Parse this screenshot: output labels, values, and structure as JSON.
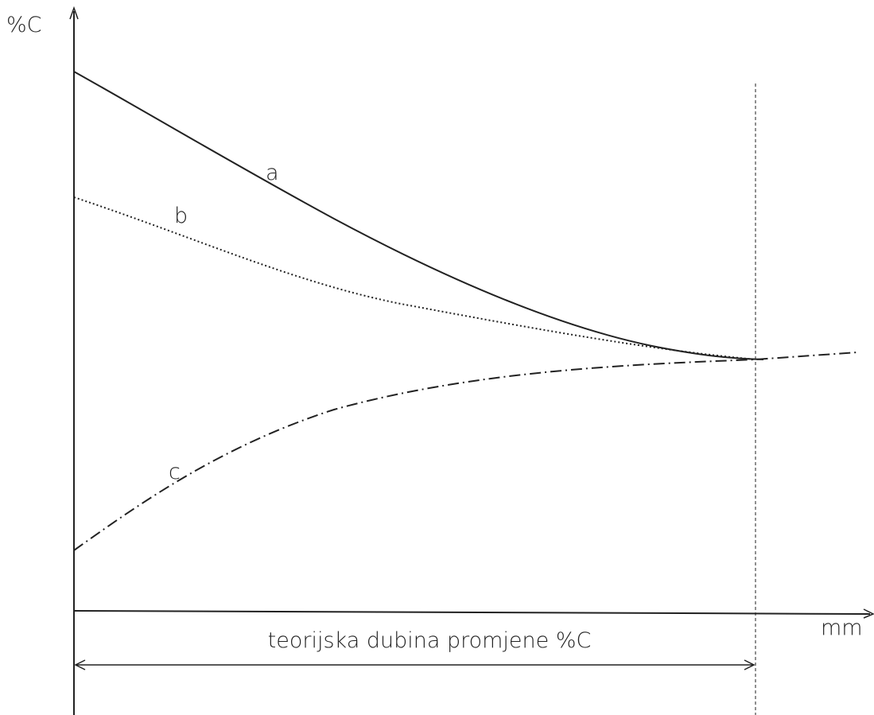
{
  "axes": {
    "y_label": "%C",
    "x_label": "mm"
  },
  "curves": [
    {
      "label": "a"
    },
    {
      "label": "b"
    },
    {
      "label": "c"
    }
  ],
  "dimension": {
    "label": "teorijska dubina promjene %C"
  }
}
